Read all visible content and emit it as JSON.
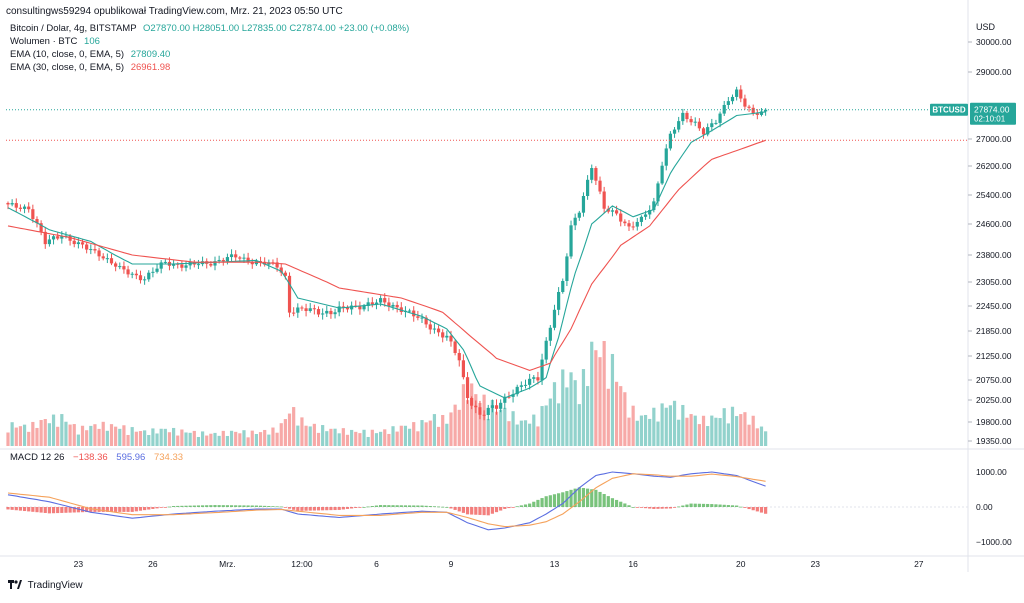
{
  "header": {
    "publisher": "consultingws59294 opublikował TradingView.com, Mrz. 21, 2023 05:50 UTC"
  },
  "legend": {
    "symbol": "Bitcoin / Dolar, 4g, BITSTAMP",
    "ohlc": [
      "O27870.00",
      "H28051.00",
      "L27835.00",
      "C27874.00"
    ],
    "change": "+23.00 (+0.08%)",
    "volume_label": "Wolumen · BTC",
    "volume_value": "106",
    "ema10_label": "EMA (10, close, 0, EMA, 5)",
    "ema10_value": "27809.40",
    "ema30_label": "EMA (30, close, 0, EMA, 5)",
    "ema30_value": "26961.98"
  },
  "macd_legend": {
    "label": "MACD 12 26",
    "hist": "−138.36",
    "macd": "595.96",
    "signal": "734.33"
  },
  "price_tag": {
    "symbol": "BTCUSD",
    "price": "27874.00",
    "countdown": "02:10:01"
  },
  "footer": {
    "brand": "TradingView"
  },
  "colors": {
    "up": "#26a69a",
    "down": "#ef5350",
    "ema10": "#26a69a",
    "ema30": "#ef5350",
    "macd": "#5b6ee1",
    "signal": "#f5a25b",
    "hist_up": "#4caf50",
    "hist_down": "#ef5350"
  },
  "chart_data": [
    {
      "type": "candlestick",
      "title": "Bitcoin / Dolar, 4g, BITSTAMP",
      "y_axis_label": "USD",
      "y_ticks": [
        19350,
        19800,
        20250,
        20750,
        21250,
        21850,
        22450,
        23050,
        23800,
        24600,
        25400,
        26200,
        27000,
        29000,
        30000
      ],
      "y_tick_labels": [
        "19350.00",
        "19800.00",
        "20250.00",
        "20750.00",
        "21250.00",
        "21850.00",
        "22450.00",
        "23050.00",
        "23800.00",
        "24600.00",
        "25400.00",
        "26200.00",
        "27000.00",
        "29000.00",
        "30000.00"
      ],
      "ylim": [
        19200,
        30300
      ],
      "x_tick_labels": [
        {
          "label": "23",
          "bar": 17
        },
        {
          "label": "26",
          "bar": 35
        },
        {
          "label": "Mrz.",
          "bar": 53
        },
        {
          "label": "12:00",
          "bar": 71
        },
        {
          "label": "6",
          "bar": 89
        },
        {
          "label": "9",
          "bar": 107
        },
        {
          "label": "13",
          "bar": 132
        },
        {
          "label": "16",
          "bar": 151
        },
        {
          "label": "20",
          "bar": 177
        },
        {
          "label": "23",
          "bar": 195
        },
        {
          "label": "27",
          "bar": 220
        }
      ],
      "close_anchor_points": [
        [
          0,
          25100
        ],
        [
          5,
          25050
        ],
        [
          9,
          24100
        ],
        [
          13,
          24350
        ],
        [
          17,
          24050
        ],
        [
          22,
          23850
        ],
        [
          27,
          23400
        ],
        [
          33,
          23150
        ],
        [
          38,
          23600
        ],
        [
          43,
          23500
        ],
        [
          49,
          23600
        ],
        [
          55,
          23750
        ],
        [
          60,
          23600
        ],
        [
          65,
          23500
        ],
        [
          67,
          23200
        ],
        [
          68,
          22350
        ],
        [
          72,
          22350
        ],
        [
          78,
          22300
        ],
        [
          84,
          22450
        ],
        [
          90,
          22550
        ],
        [
          95,
          22400
        ],
        [
          99,
          22150
        ],
        [
          103,
          21900
        ],
        [
          106,
          21700
        ],
        [
          109,
          21150
        ],
        [
          111,
          20350
        ],
        [
          114,
          19950
        ],
        [
          118,
          20100
        ],
        [
          121,
          20400
        ],
        [
          124,
          20600
        ],
        [
          128,
          20800
        ],
        [
          130,
          21600
        ],
        [
          132,
          22400
        ],
        [
          134,
          23050
        ],
        [
          136,
          24500
        ],
        [
          138,
          25000
        ],
        [
          141,
          26200
        ],
        [
          144,
          25000
        ],
        [
          147,
          24900
        ],
        [
          150,
          24500
        ],
        [
          153,
          24700
        ],
        [
          156,
          25200
        ],
        [
          158,
          26300
        ],
        [
          160,
          27100
        ],
        [
          163,
          27700
        ],
        [
          166,
          27500
        ],
        [
          168,
          27200
        ],
        [
          171,
          27500
        ],
        [
          174,
          28200
        ],
        [
          176,
          28450
        ],
        [
          178,
          28000
        ],
        [
          180,
          27700
        ],
        [
          183,
          27874
        ]
      ],
      "volume_anchor_points": [
        [
          0,
          45
        ],
        [
          5,
          40
        ],
        [
          9,
          55
        ],
        [
          13,
          60
        ],
        [
          17,
          35
        ],
        [
          22,
          45
        ],
        [
          27,
          40
        ],
        [
          33,
          30
        ],
        [
          38,
          35
        ],
        [
          43,
          30
        ],
        [
          49,
          25
        ],
        [
          55,
          30
        ],
        [
          60,
          28
        ],
        [
          65,
          35
        ],
        [
          67,
          55
        ],
        [
          68,
          80
        ],
        [
          72,
          45
        ],
        [
          78,
          35
        ],
        [
          84,
          30
        ],
        [
          90,
          30
        ],
        [
          95,
          40
        ],
        [
          99,
          45
        ],
        [
          103,
          60
        ],
        [
          106,
          55
        ],
        [
          109,
          95
        ],
        [
          111,
          130
        ],
        [
          114,
          100
        ],
        [
          118,
          80
        ],
        [
          121,
          70
        ],
        [
          124,
          50
        ],
        [
          128,
          60
        ],
        [
          130,
          90
        ],
        [
          132,
          120
        ],
        [
          134,
          140
        ],
        [
          136,
          150
        ],
        [
          138,
          110
        ],
        [
          141,
          200
        ],
        [
          144,
          210
        ],
        [
          147,
          150
        ],
        [
          150,
          80
        ],
        [
          153,
          60
        ],
        [
          156,
          70
        ],
        [
          158,
          80
        ],
        [
          160,
          90
        ],
        [
          163,
          75
        ],
        [
          166,
          60
        ],
        [
          168,
          55
        ],
        [
          171,
          60
        ],
        [
          174,
          75
        ],
        [
          176,
          70
        ],
        [
          178,
          65
        ],
        [
          180,
          55
        ],
        [
          183,
          30
        ]
      ],
      "ema10_anchor_points": [
        [
          0,
          25050
        ],
        [
          10,
          24450
        ],
        [
          20,
          24150
        ],
        [
          30,
          23550
        ],
        [
          40,
          23550
        ],
        [
          50,
          23600
        ],
        [
          60,
          23650
        ],
        [
          66,
          23350
        ],
        [
          70,
          22650
        ],
        [
          80,
          22400
        ],
        [
          90,
          22500
        ],
        [
          100,
          22200
        ],
        [
          106,
          21900
        ],
        [
          110,
          21400
        ],
        [
          114,
          20600
        ],
        [
          120,
          20300
        ],
        [
          126,
          20550
        ],
        [
          130,
          20800
        ],
        [
          133,
          21700
        ],
        [
          137,
          23300
        ],
        [
          141,
          24600
        ],
        [
          146,
          25100
        ],
        [
          151,
          24800
        ],
        [
          156,
          25000
        ],
        [
          160,
          26000
        ],
        [
          165,
          26900
        ],
        [
          170,
          27250
        ],
        [
          176,
          27700
        ],
        [
          183,
          27809
        ]
      ],
      "ema30_anchor_points": [
        [
          0,
          24550
        ],
        [
          15,
          24250
        ],
        [
          30,
          23800
        ],
        [
          45,
          23600
        ],
        [
          60,
          23600
        ],
        [
          67,
          23550
        ],
        [
          80,
          22900
        ],
        [
          95,
          22650
        ],
        [
          105,
          22300
        ],
        [
          112,
          21700
        ],
        [
          118,
          21200
        ],
        [
          126,
          20950
        ],
        [
          131,
          21100
        ],
        [
          136,
          21900
        ],
        [
          141,
          23000
        ],
        [
          148,
          24050
        ],
        [
          155,
          24550
        ],
        [
          162,
          25550
        ],
        [
          170,
          26400
        ],
        [
          177,
          26700
        ],
        [
          183,
          26962
        ]
      ]
    },
    {
      "type": "macd",
      "title": "MACD 12 26",
      "y_ticks": [
        1000,
        0,
        -1000
      ],
      "y_tick_labels": [
        "1000.00",
        "0.00",
        "−1000.00"
      ],
      "ylim": [
        -1400,
        1400
      ],
      "macd_anchor_points": [
        [
          0,
          350
        ],
        [
          10,
          150
        ],
        [
          20,
          -150
        ],
        [
          30,
          -320
        ],
        [
          40,
          -200
        ],
        [
          50,
          -120
        ],
        [
          60,
          -60
        ],
        [
          66,
          -60
        ],
        [
          70,
          -200
        ],
        [
          80,
          -300
        ],
        [
          90,
          -200
        ],
        [
          100,
          -120
        ],
        [
          106,
          -150
        ],
        [
          111,
          -450
        ],
        [
          116,
          -650
        ],
        [
          120,
          -600
        ],
        [
          126,
          -450
        ],
        [
          130,
          -200
        ],
        [
          134,
          100
        ],
        [
          138,
          550
        ],
        [
          142,
          900
        ],
        [
          146,
          1000
        ],
        [
          151,
          950
        ],
        [
          156,
          880
        ],
        [
          160,
          850
        ],
        [
          165,
          950
        ],
        [
          170,
          1000
        ],
        [
          176,
          900
        ],
        [
          183,
          596
        ]
      ],
      "signal_anchor_points": [
        [
          0,
          400
        ],
        [
          10,
          280
        ],
        [
          20,
          -50
        ],
        [
          30,
          -220
        ],
        [
          40,
          -220
        ],
        [
          50,
          -160
        ],
        [
          60,
          -90
        ],
        [
          66,
          -70
        ],
        [
          70,
          -120
        ],
        [
          80,
          -240
        ],
        [
          90,
          -240
        ],
        [
          100,
          -150
        ],
        [
          106,
          -150
        ],
        [
          111,
          -300
        ],
        [
          116,
          -480
        ],
        [
          120,
          -560
        ],
        [
          126,
          -520
        ],
        [
          130,
          -420
        ],
        [
          134,
          -200
        ],
        [
          138,
          150
        ],
        [
          142,
          550
        ],
        [
          146,
          820
        ],
        [
          151,
          950
        ],
        [
          156,
          920
        ],
        [
          160,
          880
        ],
        [
          165,
          880
        ],
        [
          170,
          940
        ],
        [
          176,
          870
        ],
        [
          183,
          734
        ]
      ],
      "histogram_rule": "macd minus signal"
    }
  ]
}
